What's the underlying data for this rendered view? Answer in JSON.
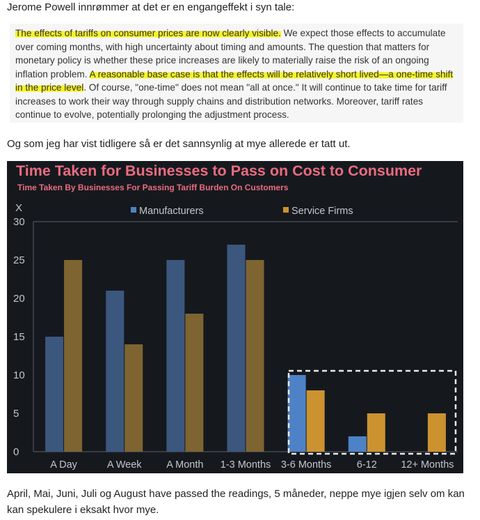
{
  "intro": "Jerome Powell innrømmer at det er en engangeffekt i syn tale:",
  "quote": {
    "hl1": "The effects of tariffs on consumer prices are now clearly visible.",
    "t1": " We expect those effects to accumulate over coming months, with high uncertainty about timing and amounts. The question that matters for monetary policy is whether these price increases are likely to materially raise the risk of an ongoing inflation problem. ",
    "hl2": "A reasonable base case is that the effects will be relatively short lived—a one-time shift in the price level",
    "t2": ". Of course, \"one-time\" does not mean \"all at once.\" It will continue to take time for tariff increases to work their way through supply chains and distribution networks. Moreover, tariff rates continue to evolve, potentially prolonging the adjustment process."
  },
  "between": "Og som jeg har vist tidligere så er det sannsynlig at mye allerede er tatt ut.",
  "outro": "April, Mai, Juni, Juli og August have passed the readings, 5 måneder, neppe mye igjen selv om kan kan spekulere i eksakt hvor mye.",
  "chart_data": {
    "type": "bar",
    "title": "Time Taken for Businesses to Pass on Cost to Consumer",
    "subtitle": "Time Taken By Businesses For Passing Tariff Burden On Customers",
    "ylabel": "X",
    "ylim": [
      0,
      30
    ],
    "yticks": [
      "0",
      "5",
      "10",
      "15",
      "20",
      "25",
      "30"
    ],
    "categories": [
      "A Day",
      "A Week",
      "A Month",
      "1-3 Months",
      "3-6 Months",
      "6-12",
      "12+ Months"
    ],
    "series": [
      {
        "name": "Manufacturers",
        "color": "#3c577e",
        "highlight_color": "#4e82c6",
        "values": [
          15,
          21,
          25,
          27,
          10,
          2,
          0
        ]
      },
      {
        "name": "Service Firms",
        "color": "#7e6431",
        "highlight_color": "#cc922f",
        "values": [
          25,
          14,
          18,
          25,
          8,
          5,
          5
        ]
      }
    ],
    "highlighted_categories": [
      "3-6 Months",
      "6-12",
      "12+ Months"
    ],
    "legend_position": "top",
    "grid": false,
    "colors": {
      "background": "#15191e",
      "title": "#ea6b80",
      "text": "#c3c6cb"
    }
  }
}
